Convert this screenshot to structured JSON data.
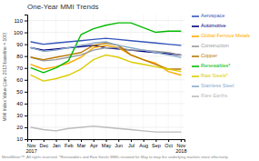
{
  "chart_data": {
    "type": "line",
    "title": "One-Year MMI Trends",
    "y_label": "MMI Index Value (Jan. 2013 baseline = 100)",
    "footnote": "MetalMiner™. All rights reserved.   *Renewables and Raw Steels MMIs restated for May to map the underlying markets more effectively.",
    "categories": [
      "Nov\n2017",
      "Dec",
      "Jan",
      "Feb",
      "Mar",
      "Apr",
      "May",
      "Jun",
      "Jul",
      "Aug",
      "Sep",
      "Oct",
      "Nov\n2018"
    ],
    "ylim": [
      10,
      115
    ],
    "yticks": [
      10,
      20,
      30,
      40,
      50,
      60,
      70,
      80,
      90,
      100,
      110
    ],
    "grid": true,
    "series": [
      {
        "name": "Aerospace",
        "color": "#3355bb",
        "values": [
          92,
          90,
          91,
          92,
          93,
          94,
          95,
          94,
          93,
          92,
          91,
          90,
          89
        ]
      },
      {
        "name": "Automotive",
        "color": "#000080",
        "values": [
          87,
          85,
          86,
          87,
          88,
          89,
          87,
          86,
          85,
          84,
          83,
          82,
          81
        ]
      },
      {
        "name": "Global Ferrous Metals",
        "color": "#ffaa00",
        "values": [
          73,
          69,
          71,
          74,
          79,
          87,
          89,
          87,
          81,
          77,
          74,
          67,
          64
        ]
      },
      {
        "name": "Construction",
        "color": "#999999",
        "values": [
          79,
          76,
          77,
          79,
          81,
          85,
          87,
          87,
          85,
          85,
          84,
          83,
          81
        ]
      },
      {
        "name": "Copper",
        "color": "#bb7700",
        "values": [
          79,
          77,
          79,
          81,
          83,
          89,
          91,
          89,
          81,
          77,
          73,
          69,
          69
        ]
      },
      {
        "name": "Renewables*",
        "color": "#00bb00",
        "values": [
          70,
          66,
          70,
          76,
          98,
          103,
          106,
          108,
          108,
          104,
          100,
          101,
          101
        ]
      },
      {
        "name": "Raw Steels*",
        "color": "#ddcc00",
        "values": [
          64,
          59,
          61,
          64,
          69,
          77,
          81,
          79,
          75,
          73,
          71,
          69,
          67
        ]
      },
      {
        "name": "Stainless Steel",
        "color": "#88aacc",
        "values": [
          87,
          84,
          85,
          87,
          89,
          91,
          92,
          89,
          87,
          85,
          83,
          81,
          79
        ]
      },
      {
        "name": "Rare Earths",
        "color": "#bbbbbb",
        "values": [
          20,
          18,
          17,
          19,
          20,
          21,
          20,
          19,
          18,
          17,
          16,
          16,
          16
        ]
      }
    ]
  }
}
